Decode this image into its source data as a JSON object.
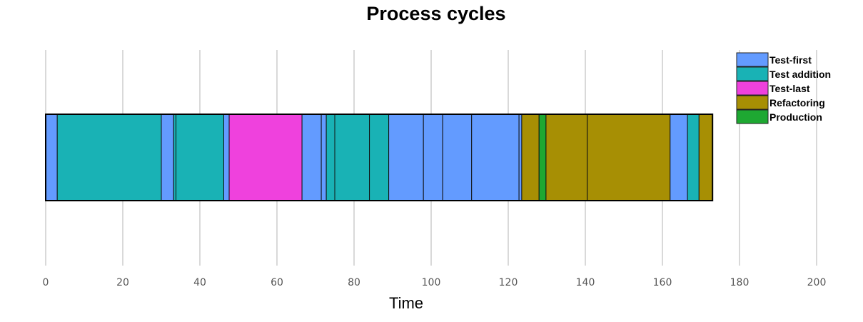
{
  "chart_data": {
    "type": "bar",
    "orientation": "horizontal-timeline",
    "title": "Process cycles",
    "xlabel": "Time",
    "ylabel": "",
    "xlim": [
      0,
      200
    ],
    "xticks": [
      "0",
      "20",
      "40",
      "60",
      "80",
      "100",
      "120",
      "140",
      "160",
      "180",
      "200"
    ],
    "grid": true,
    "legend_position": "top-right",
    "series": [
      {
        "name": "Test-first",
        "color": "#639BFF"
      },
      {
        "name": "Test addition",
        "color": "#19B2B5"
      },
      {
        "name": "Test-last",
        "color": "#EF41DD"
      },
      {
        "name": "Refactoring",
        "color": "#A78F04"
      },
      {
        "name": "Production",
        "color": "#1EA832"
      }
    ],
    "segments": [
      {
        "start": 0,
        "end": 3,
        "category": "Test-first"
      },
      {
        "start": 3,
        "end": 30,
        "category": "Test addition"
      },
      {
        "start": 30,
        "end": 33.2,
        "category": "Test-first"
      },
      {
        "start": 33.2,
        "end": 33.8,
        "category": "Test addition"
      },
      {
        "start": 33.8,
        "end": 46.2,
        "category": "Test addition"
      },
      {
        "start": 46.2,
        "end": 47.6,
        "category": "Test-first"
      },
      {
        "start": 47.6,
        "end": 66.5,
        "category": "Test-last"
      },
      {
        "start": 66.5,
        "end": 71.5,
        "category": "Test-first"
      },
      {
        "start": 71.5,
        "end": 72.8,
        "category": "Test-first"
      },
      {
        "start": 72.8,
        "end": 75,
        "category": "Test addition"
      },
      {
        "start": 75,
        "end": 84,
        "category": "Test addition"
      },
      {
        "start": 84,
        "end": 89,
        "category": "Test addition"
      },
      {
        "start": 89,
        "end": 98,
        "category": "Test-first"
      },
      {
        "start": 98,
        "end": 103,
        "category": "Test-first"
      },
      {
        "start": 103,
        "end": 110.5,
        "category": "Test-first"
      },
      {
        "start": 110.5,
        "end": 122.8,
        "category": "Test-first"
      },
      {
        "start": 122.8,
        "end": 123.5,
        "category": "Test-first"
      },
      {
        "start": 123.5,
        "end": 128,
        "category": "Refactoring"
      },
      {
        "start": 128,
        "end": 129.8,
        "category": "Production"
      },
      {
        "start": 129.8,
        "end": 140.5,
        "category": "Refactoring"
      },
      {
        "start": 140.5,
        "end": 162,
        "category": "Refactoring"
      },
      {
        "start": 162,
        "end": 166.5,
        "category": "Test-first"
      },
      {
        "start": 166.5,
        "end": 169.5,
        "category": "Test addition"
      },
      {
        "start": 169.5,
        "end": 173,
        "category": "Refactoring"
      }
    ]
  }
}
